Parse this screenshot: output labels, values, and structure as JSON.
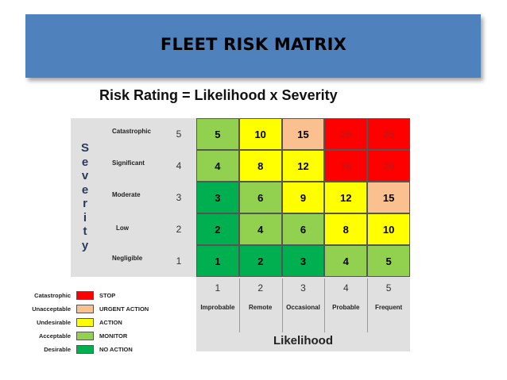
{
  "header": {
    "title": "FLEET RISK MATRIX"
  },
  "subtitle": "Risk Rating = Likelihood x Severity",
  "severity_axis": {
    "title": "Severity",
    "letters": [
      "S",
      "e",
      "v",
      "e",
      "r",
      "i",
      "t",
      "y"
    ],
    "rows": [
      {
        "label": "Catastrophic",
        "value": "5"
      },
      {
        "label": "Significant",
        "value": "4"
      },
      {
        "label": "Moderate",
        "value": "3"
      },
      {
        "label": "Low",
        "value": "2"
      },
      {
        "label": "Negligible",
        "value": "1"
      }
    ]
  },
  "likelihood_axis": {
    "title": "Likelihood",
    "columns": [
      {
        "label": "Improbable",
        "value": "1"
      },
      {
        "label": "Remote",
        "value": "2"
      },
      {
        "label": "Occasional",
        "value": "3"
      },
      {
        "label": "Probable",
        "value": "4"
      },
      {
        "label": "Frequent",
        "value": "5"
      }
    ]
  },
  "matrix": [
    [
      {
        "v": "5",
        "c": "#92d050"
      },
      {
        "v": "10",
        "c": "#ffff00"
      },
      {
        "v": "15",
        "c": "#fac090"
      },
      {
        "v": "20",
        "c": "#ff0000",
        "red": true
      },
      {
        "v": "25",
        "c": "#ff0000",
        "red": true
      }
    ],
    [
      {
        "v": "4",
        "c": "#92d050"
      },
      {
        "v": "8",
        "c": "#ffff00"
      },
      {
        "v": "12",
        "c": "#ffff00"
      },
      {
        "v": "16",
        "c": "#ff0000",
        "red": true
      },
      {
        "v": "20",
        "c": "#ff0000",
        "red": true
      }
    ],
    [
      {
        "v": "3",
        "c": "#00b050"
      },
      {
        "v": "6",
        "c": "#92d050"
      },
      {
        "v": "9",
        "c": "#ffff00"
      },
      {
        "v": "12",
        "c": "#ffff00"
      },
      {
        "v": "15",
        "c": "#fac090"
      }
    ],
    [
      {
        "v": "2",
        "c": "#00b050"
      },
      {
        "v": "4",
        "c": "#92d050"
      },
      {
        "v": "6",
        "c": "#92d050"
      },
      {
        "v": "8",
        "c": "#ffff00"
      },
      {
        "v": "10",
        "c": "#ffff00"
      }
    ],
    [
      {
        "v": "1",
        "c": "#00b050"
      },
      {
        "v": "2",
        "c": "#00b050"
      },
      {
        "v": "3",
        "c": "#00b050"
      },
      {
        "v": "4",
        "c": "#92d050"
      },
      {
        "v": "5",
        "c": "#92d050"
      }
    ]
  ],
  "legend": [
    {
      "label": "Catastrophic",
      "color": "#ff0000",
      "action": "STOP"
    },
    {
      "label": "Unacceptable",
      "color": "#fac090",
      "action": "URGENT ACTION"
    },
    {
      "label": "Undesirable",
      "color": "#ffff00",
      "action": "ACTION"
    },
    {
      "label": "Acceptable",
      "color": "#92d050",
      "action": "MONITOR"
    },
    {
      "label": "Desirable",
      "color": "#00b050",
      "action": "NO ACTION"
    }
  ]
}
